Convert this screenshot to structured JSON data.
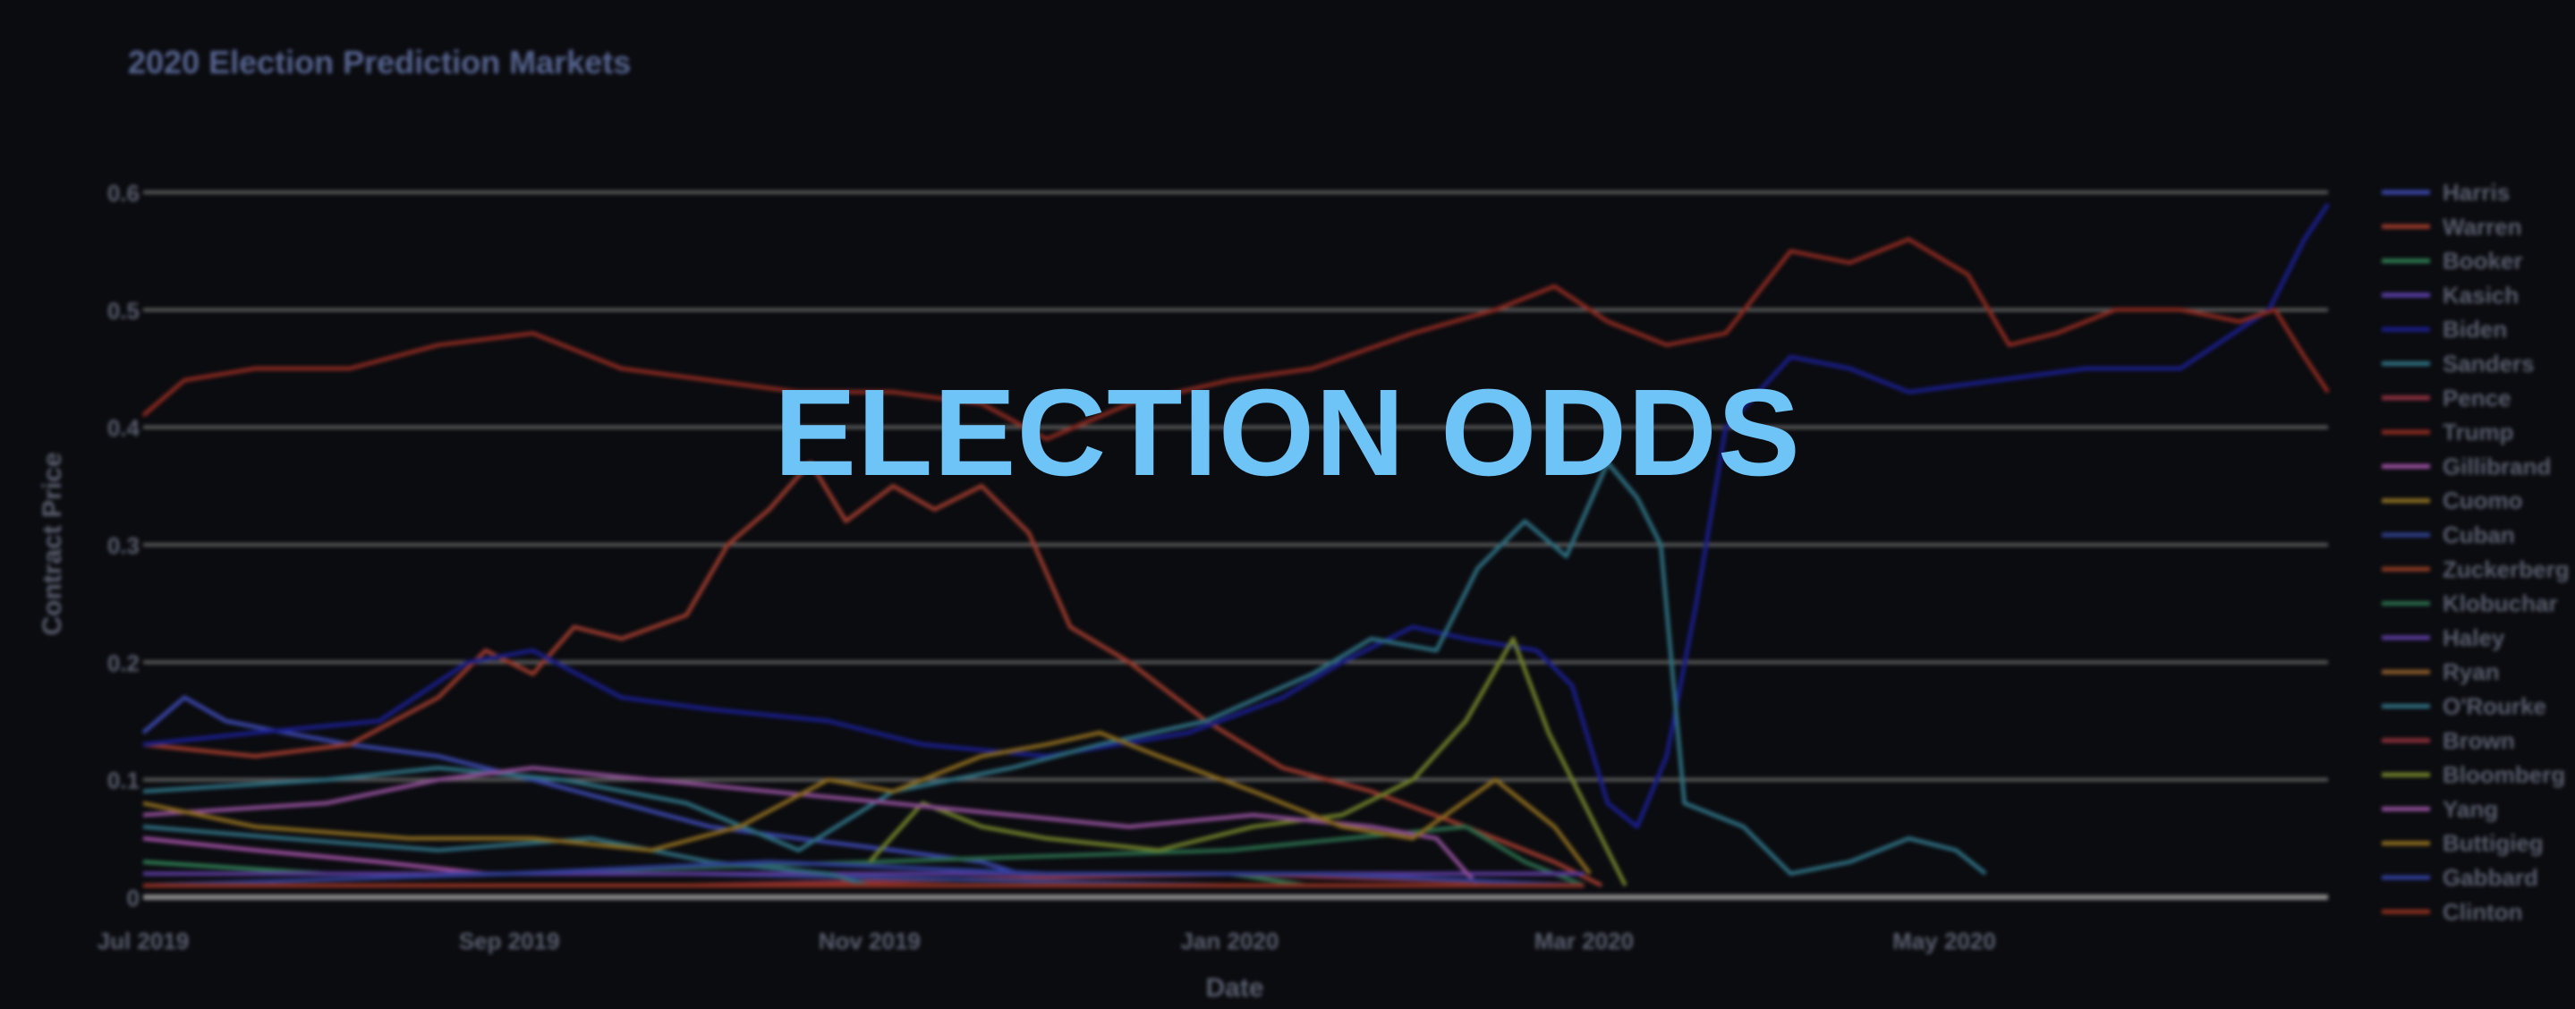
{
  "overlay": {
    "title": "ELECTION ODDS"
  },
  "chart_data": {
    "type": "line",
    "title": "2020 Election Prediction Markets",
    "xlabel": "Date",
    "ylabel": "Contract Price",
    "xlim": [
      "2019-07-01",
      "2020-07-05"
    ],
    "ylim": [
      0,
      0.6
    ],
    "x_ticks": [
      {
        "label": "Jul 2019",
        "date": "2019-07-01"
      },
      {
        "label": "Sep 2019",
        "date": "2019-09-01"
      },
      {
        "label": "Nov 2019",
        "date": "2019-11-01"
      },
      {
        "label": "Jan 2020",
        "date": "2020-01-01"
      },
      {
        "label": "Mar 2020",
        "date": "2020-03-01"
      },
      {
        "label": "May 2020",
        "date": "2020-05-01"
      }
    ],
    "y_ticks": [
      {
        "label": "0",
        "value": 0
      },
      {
        "label": "0.1",
        "value": 0.1
      },
      {
        "label": "0.2",
        "value": 0.2
      },
      {
        "label": "0.3",
        "value": 0.3
      },
      {
        "label": "0.4",
        "value": 0.4
      },
      {
        "label": "0.5",
        "value": 0.5
      },
      {
        "label": "0.6",
        "value": 0.6
      }
    ],
    "grid": true,
    "legend_position": "right",
    "series": [
      {
        "name": "Harris",
        "color": "#3a46a8",
        "points": [
          [
            "2019-07-01",
            0.14
          ],
          [
            "2019-07-08",
            0.17
          ],
          [
            "2019-07-15",
            0.15
          ],
          [
            "2019-07-25",
            0.14
          ],
          [
            "2019-08-05",
            0.13
          ],
          [
            "2019-08-20",
            0.12
          ],
          [
            "2019-09-05",
            0.1
          ],
          [
            "2019-09-20",
            0.08
          ],
          [
            "2019-10-05",
            0.06
          ],
          [
            "2019-10-20",
            0.05
          ],
          [
            "2019-11-05",
            0.04
          ],
          [
            "2019-11-20",
            0.03
          ],
          [
            "2019-12-03",
            0.01
          ]
        ]
      },
      {
        "name": "Warren",
        "color": "#9a3a2c",
        "points": [
          [
            "2019-07-01",
            0.13
          ],
          [
            "2019-07-20",
            0.12
          ],
          [
            "2019-08-05",
            0.13
          ],
          [
            "2019-08-20",
            0.17
          ],
          [
            "2019-08-28",
            0.21
          ],
          [
            "2019-09-05",
            0.19
          ],
          [
            "2019-09-12",
            0.23
          ],
          [
            "2019-09-20",
            0.22
          ],
          [
            "2019-10-01",
            0.24
          ],
          [
            "2019-10-08",
            0.3
          ],
          [
            "2019-10-15",
            0.33
          ],
          [
            "2019-10-22",
            0.37
          ],
          [
            "2019-10-28",
            0.32
          ],
          [
            "2019-11-05",
            0.35
          ],
          [
            "2019-11-12",
            0.33
          ],
          [
            "2019-11-20",
            0.35
          ],
          [
            "2019-11-28",
            0.31
          ],
          [
            "2019-12-05",
            0.23
          ],
          [
            "2019-12-15",
            0.2
          ],
          [
            "2019-12-28",
            0.15
          ],
          [
            "2020-01-10",
            0.11
          ],
          [
            "2020-01-25",
            0.09
          ],
          [
            "2020-02-10",
            0.06
          ],
          [
            "2020-02-25",
            0.03
          ],
          [
            "2020-03-04",
            0.01
          ]
        ]
      },
      {
        "name": "Booker",
        "color": "#2e7a52",
        "points": [
          [
            "2019-07-01",
            0.03
          ],
          [
            "2019-08-01",
            0.02
          ],
          [
            "2019-09-01",
            0.02
          ],
          [
            "2019-10-01",
            0.02
          ],
          [
            "2019-11-01",
            0.02
          ],
          [
            "2019-12-01",
            0.02
          ],
          [
            "2020-01-01",
            0.02
          ],
          [
            "2020-01-14",
            0.01
          ]
        ]
      },
      {
        "name": "Kasich",
        "color": "#5b3fa8",
        "points": [
          [
            "2019-07-01",
            0.01
          ],
          [
            "2019-10-01",
            0.01
          ],
          [
            "2020-01-01",
            0.01
          ],
          [
            "2020-03-01",
            0.01
          ]
        ]
      },
      {
        "name": "Biden",
        "color": "#1a1e8c",
        "points": [
          [
            "2019-07-01",
            0.13
          ],
          [
            "2019-07-20",
            0.14
          ],
          [
            "2019-08-10",
            0.15
          ],
          [
            "2019-08-25",
            0.2
          ],
          [
            "2019-09-05",
            0.21
          ],
          [
            "2019-09-20",
            0.17
          ],
          [
            "2019-10-05",
            0.16
          ],
          [
            "2019-10-25",
            0.15
          ],
          [
            "2019-11-10",
            0.13
          ],
          [
            "2019-12-01",
            0.12
          ],
          [
            "2019-12-25",
            0.14
          ],
          [
            "2020-01-10",
            0.17
          ],
          [
            "2020-01-20",
            0.2
          ],
          [
            "2020-02-01",
            0.23
          ],
          [
            "2020-02-10",
            0.22
          ],
          [
            "2020-02-22",
            0.21
          ],
          [
            "2020-02-28",
            0.18
          ],
          [
            "2020-03-05",
            0.08
          ],
          [
            "2020-03-10",
            0.06
          ],
          [
            "2020-03-15",
            0.12
          ],
          [
            "2020-03-20",
            0.25
          ],
          [
            "2020-03-25",
            0.4
          ],
          [
            "2020-04-05",
            0.46
          ],
          [
            "2020-04-15",
            0.45
          ],
          [
            "2020-04-25",
            0.43
          ],
          [
            "2020-05-10",
            0.44
          ],
          [
            "2020-05-25",
            0.45
          ],
          [
            "2020-06-10",
            0.45
          ],
          [
            "2020-06-25",
            0.5
          ],
          [
            "2020-07-01",
            0.56
          ],
          [
            "2020-07-05",
            0.59
          ]
        ]
      },
      {
        "name": "Sanders",
        "color": "#2e6f80",
        "points": [
          [
            "2019-07-01",
            0.09
          ],
          [
            "2019-08-01",
            0.1
          ],
          [
            "2019-08-20",
            0.11
          ],
          [
            "2019-09-10",
            0.1
          ],
          [
            "2019-10-01",
            0.08
          ],
          [
            "2019-10-20",
            0.04
          ],
          [
            "2019-11-05",
            0.09
          ],
          [
            "2019-11-25",
            0.11
          ],
          [
            "2019-12-10",
            0.13
          ],
          [
            "2019-12-28",
            0.15
          ],
          [
            "2020-01-15",
            0.19
          ],
          [
            "2020-01-25",
            0.22
          ],
          [
            "2020-02-05",
            0.21
          ],
          [
            "2020-02-12",
            0.28
          ],
          [
            "2020-02-20",
            0.32
          ],
          [
            "2020-02-27",
            0.29
          ],
          [
            "2020-03-05",
            0.37
          ],
          [
            "2020-03-10",
            0.34
          ],
          [
            "2020-03-14",
            0.3
          ],
          [
            "2020-03-18",
            0.08
          ],
          [
            "2020-03-28",
            0.06
          ],
          [
            "2020-04-05",
            0.02
          ],
          [
            "2020-04-15",
            0.03
          ],
          [
            "2020-04-25",
            0.05
          ],
          [
            "2020-05-03",
            0.04
          ],
          [
            "2020-05-08",
            0.02
          ]
        ]
      },
      {
        "name": "Pence",
        "color": "#8f3040",
        "points": [
          [
            "2019-07-01",
            0.01
          ],
          [
            "2019-10-01",
            0.01
          ],
          [
            "2020-01-01",
            0.02
          ],
          [
            "2020-03-01",
            0.01
          ]
        ]
      },
      {
        "name": "Trump",
        "color": "#8c2a20",
        "points": [
          [
            "2019-07-01",
            0.41
          ],
          [
            "2019-07-08",
            0.44
          ],
          [
            "2019-07-20",
            0.45
          ],
          [
            "2019-08-05",
            0.45
          ],
          [
            "2019-08-20",
            0.47
          ],
          [
            "2019-09-05",
            0.48
          ],
          [
            "2019-09-20",
            0.45
          ],
          [
            "2019-10-05",
            0.44
          ],
          [
            "2019-10-20",
            0.43
          ],
          [
            "2019-11-05",
            0.43
          ],
          [
            "2019-11-20",
            0.42
          ],
          [
            "2019-12-01",
            0.39
          ],
          [
            "2019-12-15",
            0.42
          ],
          [
            "2020-01-01",
            0.44
          ],
          [
            "2020-01-15",
            0.45
          ],
          [
            "2020-02-01",
            0.48
          ],
          [
            "2020-02-15",
            0.5
          ],
          [
            "2020-02-25",
            0.52
          ],
          [
            "2020-03-05",
            0.49
          ],
          [
            "2020-03-15",
            0.47
          ],
          [
            "2020-03-25",
            0.48
          ],
          [
            "2020-04-05",
            0.55
          ],
          [
            "2020-04-15",
            0.54
          ],
          [
            "2020-04-25",
            0.56
          ],
          [
            "2020-05-05",
            0.53
          ],
          [
            "2020-05-12",
            0.47
          ],
          [
            "2020-05-20",
            0.48
          ],
          [
            "2020-05-30",
            0.5
          ],
          [
            "2020-06-10",
            0.5
          ],
          [
            "2020-06-20",
            0.49
          ],
          [
            "2020-06-26",
            0.5
          ],
          [
            "2020-07-01",
            0.46
          ],
          [
            "2020-07-05",
            0.43
          ]
        ]
      },
      {
        "name": "Gillibrand",
        "color": "#9a4f9e",
        "points": [
          [
            "2019-07-01",
            0.05
          ],
          [
            "2019-07-20",
            0.04
          ],
          [
            "2019-08-10",
            0.03
          ],
          [
            "2019-08-28",
            0.02
          ]
        ]
      },
      {
        "name": "Cuomo",
        "color": "#8a6f22",
        "points": [
          [
            "2019-07-01",
            0.01
          ],
          [
            "2019-10-01",
            0.01
          ],
          [
            "2020-01-01",
            0.01
          ],
          [
            "2020-03-01",
            0.01
          ]
        ]
      },
      {
        "name": "Cuban",
        "color": "#2e3f8a",
        "points": [
          [
            "2019-07-01",
            0.02
          ],
          [
            "2019-10-01",
            0.02
          ],
          [
            "2020-01-01",
            0.01
          ],
          [
            "2020-03-01",
            0.01
          ]
        ]
      },
      {
        "name": "Zuckerberg",
        "color": "#8c3a22",
        "points": [
          [
            "2019-07-01",
            0.01
          ],
          [
            "2019-10-01",
            0.01
          ],
          [
            "2020-01-01",
            0.01
          ],
          [
            "2020-03-01",
            0.01
          ]
        ]
      },
      {
        "name": "Klobuchar",
        "color": "#2a6a4a",
        "points": [
          [
            "2019-07-01",
            0.02
          ],
          [
            "2019-09-01",
            0.02
          ],
          [
            "2019-11-01",
            0.03
          ],
          [
            "2020-01-01",
            0.04
          ],
          [
            "2020-02-10",
            0.06
          ],
          [
            "2020-02-20",
            0.03
          ],
          [
            "2020-03-01",
            0.01
          ]
        ]
      },
      {
        "name": "Haley",
        "color": "#5a3a9a",
        "points": [
          [
            "2019-07-01",
            0.02
          ],
          [
            "2019-10-01",
            0.02
          ],
          [
            "2020-01-01",
            0.02
          ],
          [
            "2020-03-01",
            0.02
          ]
        ]
      },
      {
        "name": "Ryan",
        "color": "#8a5a2a",
        "points": [
          [
            "2019-07-01",
            0.01
          ],
          [
            "2019-10-01",
            0.01
          ],
          [
            "2020-01-01",
            0.01
          ]
        ]
      },
      {
        "name": "O'Rourke",
        "color": "#2f6c7e",
        "points": [
          [
            "2019-07-01",
            0.06
          ],
          [
            "2019-07-25",
            0.05
          ],
          [
            "2019-08-20",
            0.04
          ],
          [
            "2019-09-15",
            0.05
          ],
          [
            "2019-10-05",
            0.03
          ],
          [
            "2019-10-25",
            0.02
          ],
          [
            "2019-11-01",
            0.01
          ]
        ]
      },
      {
        "name": "Brown",
        "color": "#8a3038",
        "points": [
          [
            "2019-07-01",
            0.01
          ],
          [
            "2019-10-01",
            0.01
          ],
          [
            "2020-01-01",
            0.01
          ]
        ]
      },
      {
        "name": "Bloomberg",
        "color": "#6f7f2a",
        "points": [
          [
            "2019-11-01",
            0.03
          ],
          [
            "2019-11-10",
            0.08
          ],
          [
            "2019-11-20",
            0.06
          ],
          [
            "2019-12-01",
            0.05
          ],
          [
            "2019-12-20",
            0.04
          ],
          [
            "2020-01-05",
            0.06
          ],
          [
            "2020-01-20",
            0.07
          ],
          [
            "2020-02-01",
            0.1
          ],
          [
            "2020-02-10",
            0.15
          ],
          [
            "2020-02-18",
            0.22
          ],
          [
            "2020-02-24",
            0.14
          ],
          [
            "2020-03-01",
            0.08
          ],
          [
            "2020-03-06",
            0.03
          ],
          [
            "2020-03-08",
            0.01
          ]
        ]
      },
      {
        "name": "Yang",
        "color": "#8f4f97",
        "points": [
          [
            "2019-07-01",
            0.07
          ],
          [
            "2019-08-01",
            0.08
          ],
          [
            "2019-08-20",
            0.1
          ],
          [
            "2019-09-05",
            0.11
          ],
          [
            "2019-09-25",
            0.1
          ],
          [
            "2019-10-15",
            0.09
          ],
          [
            "2019-11-05",
            0.08
          ],
          [
            "2019-11-25",
            0.07
          ],
          [
            "2019-12-15",
            0.06
          ],
          [
            "2020-01-05",
            0.07
          ],
          [
            "2020-01-25",
            0.06
          ],
          [
            "2020-02-05",
            0.05
          ],
          [
            "2020-02-12",
            0.01
          ]
        ]
      },
      {
        "name": "Buttigieg",
        "color": "#8a6a1e",
        "points": [
          [
            "2019-07-01",
            0.08
          ],
          [
            "2019-07-20",
            0.06
          ],
          [
            "2019-08-15",
            0.05
          ],
          [
            "2019-09-05",
            0.05
          ],
          [
            "2019-09-25",
            0.04
          ],
          [
            "2019-10-10",
            0.06
          ],
          [
            "2019-10-25",
            0.1
          ],
          [
            "2019-11-05",
            0.09
          ],
          [
            "2019-11-20",
            0.12
          ],
          [
            "2019-12-01",
            0.13
          ],
          [
            "2019-12-10",
            0.14
          ],
          [
            "2019-12-20",
            0.12
          ],
          [
            "2020-01-05",
            0.09
          ],
          [
            "2020-01-20",
            0.06
          ],
          [
            "2020-02-01",
            0.05
          ],
          [
            "2020-02-15",
            0.1
          ],
          [
            "2020-02-25",
            0.06
          ],
          [
            "2020-03-02",
            0.02
          ]
        ]
      },
      {
        "name": "Gabbard",
        "color": "#2f3e96",
        "points": [
          [
            "2019-07-01",
            0.01
          ],
          [
            "2019-09-01",
            0.02
          ],
          [
            "2019-10-15",
            0.03
          ],
          [
            "2019-12-01",
            0.02
          ],
          [
            "2020-01-15",
            0.02
          ],
          [
            "2020-03-01",
            0.01
          ]
        ]
      },
      {
        "name": "Clinton",
        "color": "#8a2e1e",
        "points": [
          [
            "2019-07-01",
            0.01
          ],
          [
            "2019-10-01",
            0.01
          ],
          [
            "2020-01-01",
            0.01
          ],
          [
            "2020-03-01",
            0.01
          ]
        ]
      }
    ]
  }
}
